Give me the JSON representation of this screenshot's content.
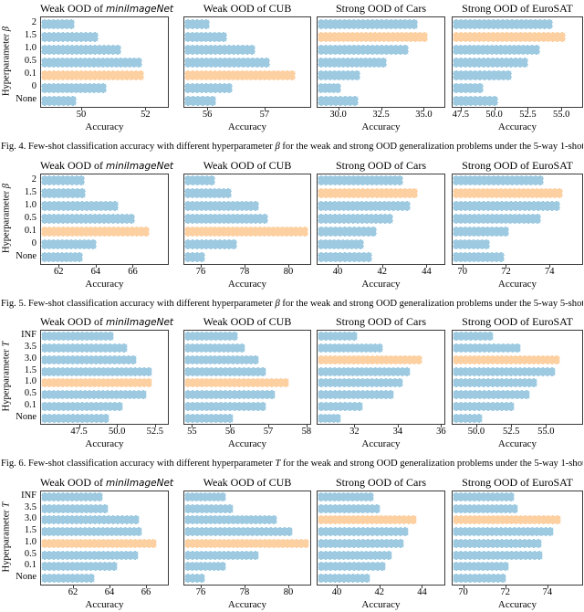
{
  "page": {
    "xlabel": "Accuracy"
  },
  "colors": {
    "bar": "#9ecae1",
    "bar_highlight": "#fdd0a2",
    "box_border": "#3a3a3a",
    "text": "#111111"
  },
  "chart_data": [
    {
      "id": "fig4",
      "type": "bar",
      "orientation": "horizontal",
      "grid": false,
      "legend": "none",
      "ylabel_parts": [
        [
          "t",
          "Hyperparameter "
        ],
        [
          "i",
          "β"
        ]
      ],
      "categories": [
        "2",
        "1.5",
        "1.0",
        "0.5",
        "0.1",
        "0",
        "None"
      ],
      "caption_parts": [
        [
          "t",
          "Fig. 4.  Few-shot classification accuracy with different hyperparameter "
        ],
        [
          "i",
          "β"
        ],
        [
          "t",
          " for the weak and strong OOD generalization problems under the 5-way 1-shot setting."
        ]
      ],
      "charts": [
        {
          "title_parts": [
            [
              "t",
              "Weak OOD of "
            ],
            [
              "em",
              "miniImageNet"
            ]
          ],
          "xlabel": "Accuracy",
          "xlim": [
            48.75,
            52.7
          ],
          "xticks": [
            {
              "v": 50,
              "label": "50"
            },
            {
              "v": 52,
              "label": "52"
            }
          ],
          "values": [
            49.8,
            50.55,
            51.25,
            51.9,
            51.95,
            50.8,
            49.85
          ],
          "highlight_index": 4,
          "highlight_category": "0.1"
        },
        {
          "title_parts": [
            [
              "t",
              "Weak OOD of CUB"
            ]
          ],
          "xlabel": "Accuracy",
          "xlim": [
            55.6,
            57.8
          ],
          "xticks": [
            {
              "v": 56,
              "label": "56"
            },
            {
              "v": 57,
              "label": "57"
            }
          ],
          "values": [
            56.05,
            56.35,
            56.85,
            57.1,
            57.55,
            56.45,
            56.15
          ],
          "highlight_index": 4,
          "highlight_category": "0.1"
        },
        {
          "title_parts": [
            [
              "t",
              "Strong OOD of Cars"
            ]
          ],
          "xlabel": "Accuracy",
          "xlim": [
            28.8,
            36.2
          ],
          "xticks": [
            {
              "v": 30,
              "label": "30.0"
            },
            {
              "v": 32.5,
              "label": "32.5"
            },
            {
              "v": 35,
              "label": "35.0"
            }
          ],
          "values": [
            34.65,
            35.25,
            34.15,
            32.85,
            31.3,
            30.2,
            31.2
          ],
          "highlight_index": 1,
          "highlight_category": "1.5"
        },
        {
          "title_parts": [
            [
              "t",
              "Strong OOD of EuroSAT"
            ]
          ],
          "xlabel": "Accuracy",
          "xlim": [
            46.9,
            56.55
          ],
          "xticks": [
            {
              "v": 47.5,
              "label": "47.5"
            },
            {
              "v": 50,
              "label": "50.0"
            },
            {
              "v": 52.5,
              "label": "52.5"
            },
            {
              "v": 55,
              "label": "55.0"
            }
          ],
          "values": [
            54.4,
            55.35,
            53.45,
            52.55,
            51.3,
            49.2,
            50.3
          ],
          "highlight_index": 1,
          "highlight_category": "1.5"
        }
      ]
    },
    {
      "id": "fig5",
      "type": "bar",
      "orientation": "horizontal",
      "grid": false,
      "legend": "none",
      "ylabel_parts": [
        [
          "t",
          "Hyperparameter "
        ],
        [
          "i",
          "β"
        ]
      ],
      "categories": [
        "2",
        "1.5",
        "1.0",
        "0.5",
        "0.1",
        "0",
        "None"
      ],
      "caption_parts": [
        [
          "t",
          "Fig. 5.  Few-shot classification accuracy with different hyperparameter "
        ],
        [
          "i",
          "β"
        ],
        [
          "t",
          " for the weak and strong OOD generalization problems under the 5-way 5-shot setting."
        ]
      ],
      "charts": [
        {
          "title_parts": [
            [
              "t",
              "Weak OOD of "
            ],
            [
              "em",
              "miniImageNet"
            ]
          ],
          "xlabel": "Accuracy",
          "xlim": [
            61.05,
            67.9
          ],
          "xticks": [
            {
              "v": 62,
              "label": "62"
            },
            {
              "v": 64,
              "label": "64"
            },
            {
              "v": 66,
              "label": "66"
            }
          ],
          "values": [
            63.4,
            63.45,
            65.25,
            66.15,
            66.9,
            64.05,
            63.3
          ],
          "highlight_index": 4,
          "highlight_category": "0.1"
        },
        {
          "title_parts": [
            [
              "t",
              "Weak OOD of CUB"
            ]
          ],
          "xlabel": "Accuracy",
          "xlim": [
            75.25,
            81.0
          ],
          "xticks": [
            {
              "v": 76,
              "label": "76"
            },
            {
              "v": 78,
              "label": "78"
            },
            {
              "v": 80,
              "label": "80"
            }
          ],
          "values": [
            76.65,
            77.4,
            78.65,
            79.1,
            80.9,
            77.65,
            76.2
          ],
          "highlight_index": 4,
          "highlight_category": "0.1"
        },
        {
          "title_parts": [
            [
              "t",
              "Strong OOD of Cars"
            ]
          ],
          "xlabel": "Accuracy",
          "xlim": [
            39.1,
            44.8
          ],
          "xticks": [
            {
              "v": 40,
              "label": "40"
            },
            {
              "v": 42,
              "label": "42"
            },
            {
              "v": 44,
              "label": "44"
            }
          ],
          "values": [
            42.95,
            43.6,
            43.3,
            42.5,
            41.75,
            41.2,
            41.55
          ],
          "highlight_index": 1,
          "highlight_category": "1.5"
        },
        {
          "title_parts": [
            [
              "t",
              "Strong OOD of EuroSAT"
            ]
          ],
          "xlabel": "Accuracy",
          "xlim": [
            69.55,
            75.5
          ],
          "xticks": [
            {
              "v": 70,
              "label": "70"
            },
            {
              "v": 72,
              "label": "72"
            },
            {
              "v": 74,
              "label": "74"
            }
          ],
          "values": [
            73.75,
            74.6,
            74.5,
            73.6,
            72.15,
            71.25,
            71.95
          ],
          "highlight_index": 1,
          "highlight_category": "1.5"
        }
      ]
    },
    {
      "id": "fig6",
      "type": "bar",
      "orientation": "horizontal",
      "grid": false,
      "legend": "none",
      "ylabel_parts": [
        [
          "t",
          "Hyperparameter "
        ],
        [
          "i",
          "T"
        ]
      ],
      "categories": [
        "INF",
        "3.5",
        "3.0",
        "1.5",
        "1.0",
        "0.5",
        "0.1",
        "None"
      ],
      "caption_parts": [
        [
          "t",
          "Fig. 6.  Few-shot classification accuracy with different hyperparameter "
        ],
        [
          "i",
          "T"
        ],
        [
          "t",
          " for the weak and strong OOD generalization problems under the 5-way 1-shot setting."
        ]
      ],
      "charts": [
        {
          "title_parts": [
            [
              "t",
              "Weak OOD of "
            ],
            [
              "em",
              "miniImageNet"
            ]
          ],
          "xlabel": "Accuracy",
          "xlim": [
            45.0,
            53.35
          ],
          "xticks": [
            {
              "v": 47.5,
              "label": "47.5"
            },
            {
              "v": 50,
              "label": "50.0"
            },
            {
              "v": 52.5,
              "label": "52.5"
            }
          ],
          "values": [
            49.8,
            50.7,
            51.3,
            52.3,
            52.35,
            51.95,
            50.4,
            49.5
          ],
          "highlight_index": 4,
          "highlight_category": "1.0"
        },
        {
          "title_parts": [
            [
              "t",
              "Weak OOD of CUB"
            ]
          ],
          "xlabel": "Accuracy",
          "xlim": [
            54.8,
            58.1
          ],
          "xticks": [
            {
              "v": 55,
              "label": "55"
            },
            {
              "v": 56,
              "label": "56"
            },
            {
              "v": 57,
              "label": "57"
            },
            {
              "v": 58,
              "label": "58"
            }
          ],
          "values": [
            56.2,
            56.4,
            56.75,
            56.95,
            57.55,
            57.2,
            56.95,
            56.1
          ],
          "highlight_index": 4,
          "highlight_category": "1.0"
        },
        {
          "title_parts": [
            [
              "t",
              "Strong OOD of Cars"
            ]
          ],
          "xlabel": "Accuracy",
          "xlim": [
            30.3,
            36.15
          ],
          "xticks": [
            {
              "v": 32,
              "label": "32"
            },
            {
              "v": 34,
              "label": "34"
            },
            {
              "v": 36,
              "label": "36"
            }
          ],
          "values": [
            32.15,
            33.35,
            35.15,
            34.6,
            34.25,
            33.85,
            32.4,
            31.4
          ],
          "highlight_index": 2,
          "highlight_category": "3.0"
        },
        {
          "title_parts": [
            [
              "t",
              "Strong OOD of EuroSAT"
            ]
          ],
          "xlabel": "Accuracy",
          "xlim": [
            48.3,
            57.6
          ],
          "xticks": [
            {
              "v": 50,
              "label": "50.0"
            },
            {
              "v": 52.5,
              "label": "52.5"
            },
            {
              "v": 55,
              "label": "55.0"
            }
          ],
          "values": [
            51.25,
            53.2,
            56.05,
            55.7,
            54.4,
            53.85,
            52.75,
            50.45
          ],
          "highlight_index": 2,
          "highlight_category": "3.0"
        }
      ]
    },
    {
      "id": "fig7",
      "type": "bar",
      "orientation": "horizontal",
      "grid": false,
      "legend": "none",
      "ylabel_parts": [
        [
          "t",
          "Hyperparameter "
        ],
        [
          "i",
          "T"
        ]
      ],
      "categories": [
        "INF",
        "3.5",
        "3.0",
        "1.5",
        "1.0",
        "0.5",
        "0.1",
        "None"
      ],
      "caption_parts": null,
      "charts": [
        {
          "title_parts": [
            [
              "t",
              "Weak OOD of "
            ],
            [
              "em",
              "miniImageNet"
            ]
          ],
          "xlabel": "Accuracy",
          "xlim": [
            60.25,
            67.2
          ],
          "xticks": [
            {
              "v": 62,
              "label": "62"
            },
            {
              "v": 64,
              "label": "64"
            },
            {
              "v": 66,
              "label": "66"
            }
          ],
          "values": [
            63.65,
            63.95,
            65.65,
            65.8,
            66.6,
            65.6,
            64.45,
            63.2
          ],
          "highlight_index": 4,
          "highlight_category": "1.0"
        },
        {
          "title_parts": [
            [
              "t",
              "Weak OOD of CUB"
            ]
          ],
          "xlabel": "Accuracy",
          "xlim": [
            75.25,
            81.0
          ],
          "xticks": [
            {
              "v": 76,
              "label": "76"
            },
            {
              "v": 78,
              "label": "78"
            },
            {
              "v": 80,
              "label": "80"
            }
          ],
          "values": [
            77.15,
            77.5,
            79.5,
            80.2,
            80.95,
            78.65,
            77.15,
            76.2
          ],
          "highlight_index": 4,
          "highlight_category": "1.0"
        },
        {
          "title_parts": [
            [
              "t",
              "Strong OOD of Cars"
            ]
          ],
          "xlabel": "Accuracy",
          "xlim": [
            39.1,
            45.05
          ],
          "xticks": [
            {
              "v": 40,
              "label": "40"
            },
            {
              "v": 42,
              "label": "42"
            },
            {
              "v": 44,
              "label": "44"
            }
          ],
          "values": [
            41.75,
            42.05,
            43.75,
            43.4,
            43.15,
            42.6,
            42.3,
            41.6
          ],
          "highlight_index": 2,
          "highlight_category": "3.0"
        },
        {
          "title_parts": [
            [
              "t",
              "Strong OOD of EuroSAT"
            ]
          ],
          "xlabel": "Accuracy",
          "xlim": [
            69.5,
            75.65
          ],
          "xticks": [
            {
              "v": 70,
              "label": "70"
            },
            {
              "v": 72,
              "label": "72"
            },
            {
              "v": 74,
              "label": "74"
            }
          ],
          "values": [
            72.45,
            72.6,
            74.65,
            74.3,
            73.75,
            73.8,
            72.2,
            72.05
          ],
          "highlight_index": 2,
          "highlight_category": "3.0"
        }
      ]
    }
  ]
}
